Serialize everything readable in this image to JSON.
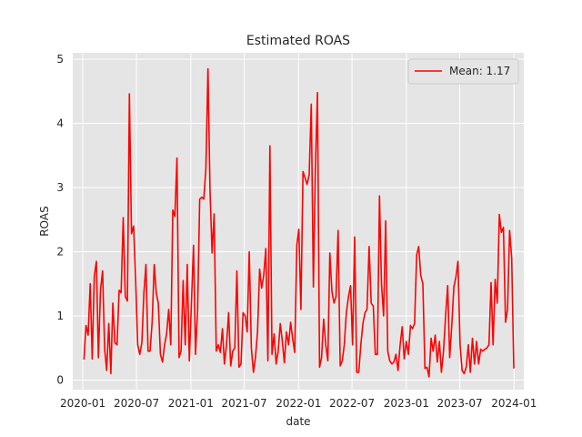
{
  "chart_data": {
    "type": "line",
    "title": "Estimated ROAS",
    "xlabel": "date",
    "ylabel": "ROAS",
    "x_ticks": [
      "2020-01",
      "2020-07",
      "2021-01",
      "2021-07",
      "2022-01",
      "2022-07",
      "2023-01",
      "2023-07",
      "2024-01"
    ],
    "y_ticks": [
      "0",
      "1",
      "2",
      "3",
      "4",
      "5"
    ],
    "ylim": [
      -0.15,
      5.1
    ],
    "xlim": [
      "2019-11-28",
      "2024-02-03"
    ],
    "grid": true,
    "legend": {
      "position": "top-right",
      "entries": [
        "Mean: 1.17"
      ]
    },
    "colors": {
      "line": "#ff0000",
      "plot_bg": "#e5e5e5",
      "grid": "#ffffff"
    },
    "series": [
      {
        "name": "Mean: 1.17",
        "x": [
          "2020-01-05",
          "2020-01-12",
          "2020-01-19",
          "2020-01-26",
          "2020-02-02",
          "2020-02-09",
          "2020-02-16",
          "2020-02-23",
          "2020-03-01",
          "2020-03-08",
          "2020-03-15",
          "2020-03-22",
          "2020-03-29",
          "2020-04-05",
          "2020-04-12",
          "2020-04-19",
          "2020-04-26",
          "2020-05-03",
          "2020-05-10",
          "2020-05-17",
          "2020-05-24",
          "2020-05-31",
          "2020-06-07",
          "2020-06-14",
          "2020-06-21",
          "2020-06-28",
          "2020-07-05",
          "2020-07-12",
          "2020-07-19",
          "2020-07-26",
          "2020-08-02",
          "2020-08-09",
          "2020-08-16",
          "2020-08-23",
          "2020-08-30",
          "2020-09-06",
          "2020-09-13",
          "2020-09-20",
          "2020-09-27",
          "2020-10-04",
          "2020-10-11",
          "2020-10-18",
          "2020-10-25",
          "2020-11-01",
          "2020-11-08",
          "2020-11-15",
          "2020-11-22",
          "2020-11-29",
          "2020-12-06",
          "2020-12-13",
          "2020-12-20",
          "2020-12-27",
          "2021-01-03",
          "2021-01-10",
          "2021-01-17",
          "2021-01-24",
          "2021-01-31",
          "2021-02-07",
          "2021-02-14",
          "2021-02-21",
          "2021-02-28",
          "2021-03-07",
          "2021-03-14",
          "2021-03-21",
          "2021-03-28",
          "2021-04-04",
          "2021-04-11",
          "2021-04-18",
          "2021-04-25",
          "2021-05-02",
          "2021-05-09",
          "2021-05-16",
          "2021-05-23",
          "2021-05-30",
          "2021-06-06",
          "2021-06-13",
          "2021-06-20",
          "2021-06-27",
          "2021-07-04",
          "2021-07-11",
          "2021-07-18",
          "2021-07-25",
          "2021-08-01",
          "2021-08-08",
          "2021-08-15",
          "2021-08-22",
          "2021-08-29",
          "2021-09-05",
          "2021-09-12",
          "2021-09-19",
          "2021-09-26",
          "2021-10-03",
          "2021-10-10",
          "2021-10-17",
          "2021-10-24",
          "2021-10-31",
          "2021-11-07",
          "2021-11-14",
          "2021-11-21",
          "2021-11-28",
          "2021-12-05",
          "2021-12-12",
          "2021-12-19",
          "2021-12-26",
          "2022-01-02",
          "2022-01-09",
          "2022-01-16",
          "2022-01-23",
          "2022-01-30",
          "2022-02-06",
          "2022-02-13",
          "2022-02-20",
          "2022-02-27",
          "2022-03-06",
          "2022-03-13",
          "2022-03-20",
          "2022-03-27",
          "2022-04-03",
          "2022-04-10",
          "2022-04-17",
          "2022-04-24",
          "2022-05-01",
          "2022-05-08",
          "2022-05-15",
          "2022-05-22",
          "2022-05-29",
          "2022-06-05",
          "2022-06-12",
          "2022-06-19",
          "2022-06-26",
          "2022-07-03",
          "2022-07-10",
          "2022-07-17",
          "2022-07-24",
          "2022-07-31",
          "2022-08-07",
          "2022-08-14",
          "2022-08-21",
          "2022-08-28",
          "2022-09-04",
          "2022-09-11",
          "2022-09-18",
          "2022-09-25",
          "2022-10-02",
          "2022-10-09",
          "2022-10-16",
          "2022-10-23",
          "2022-10-30",
          "2022-11-06",
          "2022-11-13",
          "2022-11-20",
          "2022-11-27",
          "2022-12-04",
          "2022-12-11",
          "2022-12-18",
          "2022-12-25",
          "2023-01-01",
          "2023-01-08",
          "2023-01-15",
          "2023-01-22",
          "2023-01-29",
          "2023-02-05",
          "2023-02-12",
          "2023-02-19",
          "2023-02-26",
          "2023-03-05",
          "2023-03-12",
          "2023-03-19",
          "2023-03-26",
          "2023-04-02",
          "2023-04-09",
          "2023-04-16",
          "2023-04-23",
          "2023-04-30",
          "2023-05-07",
          "2023-05-14",
          "2023-05-21",
          "2023-05-28",
          "2023-06-04",
          "2023-06-11",
          "2023-06-18",
          "2023-06-25",
          "2023-07-02",
          "2023-07-09",
          "2023-07-16",
          "2023-07-23",
          "2023-07-30",
          "2023-08-06",
          "2023-08-13",
          "2023-08-20",
          "2023-08-27",
          "2023-09-03",
          "2023-09-10",
          "2023-09-17",
          "2023-09-24",
          "2023-10-01",
          "2023-10-08",
          "2023-10-15",
          "2023-10-22",
          "2023-10-29",
          "2023-11-05",
          "2023-11-12",
          "2023-11-19",
          "2023-11-26",
          "2023-12-03",
          "2023-12-10",
          "2023-12-17",
          "2023-12-24",
          "2023-12-31"
        ],
        "y": [
          0.32,
          0.85,
          0.7,
          1.5,
          0.33,
          1.62,
          1.85,
          0.35,
          1.4,
          1.7,
          0.48,
          0.15,
          0.88,
          0.1,
          1.2,
          0.58,
          0.55,
          1.4,
          1.36,
          2.53,
          1.3,
          1.23,
          4.46,
          2.28,
          2.4,
          1.6,
          0.55,
          0.4,
          0.58,
          1.35,
          1.8,
          0.45,
          0.45,
          0.9,
          1.8,
          1.35,
          1.2,
          0.4,
          0.28,
          0.55,
          0.72,
          1.1,
          0.55,
          2.65,
          2.55,
          3.46,
          0.35,
          0.45,
          1.55,
          0.55,
          1.8,
          0.3,
          1.2,
          2.1,
          0.4,
          1.1,
          2.82,
          2.85,
          2.82,
          3.3,
          4.85,
          2.98,
          1.98,
          2.59,
          0.45,
          0.55,
          0.43,
          0.8,
          0.25,
          0.55,
          1.05,
          0.22,
          0.45,
          0.5,
          1.7,
          0.2,
          0.25,
          1.05,
          1.0,
          0.75,
          2.0,
          0.5,
          0.12,
          0.35,
          0.75,
          1.73,
          1.43,
          1.63,
          2.05,
          0.3,
          3.65,
          0.4,
          0.72,
          0.25,
          0.45,
          0.88,
          0.6,
          0.27,
          0.75,
          0.55,
          0.9,
          0.65,
          0.43,
          2.1,
          2.35,
          1.1,
          3.25,
          3.15,
          3.05,
          3.2,
          4.3,
          1.45,
          3.3,
          4.48,
          0.2,
          0.35,
          0.95,
          0.55,
          0.3,
          1.98,
          1.38,
          1.2,
          1.3,
          2.33,
          0.22,
          0.3,
          0.55,
          1.05,
          1.3,
          1.47,
          0.55,
          2.23,
          0.12,
          0.12,
          0.55,
          0.88,
          1.05,
          1.1,
          2.08,
          1.2,
          1.15,
          0.4,
          0.4,
          2.87,
          1.5,
          1.0,
          2.48,
          0.45,
          0.3,
          0.25,
          0.28,
          0.4,
          0.15,
          0.55,
          0.83,
          0.33,
          0.6,
          0.4,
          0.85,
          0.8,
          0.88,
          1.95,
          2.08,
          1.63,
          1.5,
          0.18,
          0.2,
          0.05,
          0.65,
          0.45,
          0.7,
          0.28,
          0.6,
          0.12,
          0.45,
          1.0,
          1.47,
          0.35,
          0.85,
          1.45,
          1.6,
          1.85,
          0.55,
          0.15,
          0.1,
          0.2,
          0.55,
          0.12,
          0.65,
          0.25,
          0.6,
          0.25,
          0.48,
          0.45,
          0.48,
          0.5,
          0.55,
          1.52,
          0.55,
          1.57,
          1.2,
          2.58,
          2.3,
          2.38,
          0.9,
          1.1,
          2.33,
          1.9,
          0.18
        ]
      }
    ]
  }
}
